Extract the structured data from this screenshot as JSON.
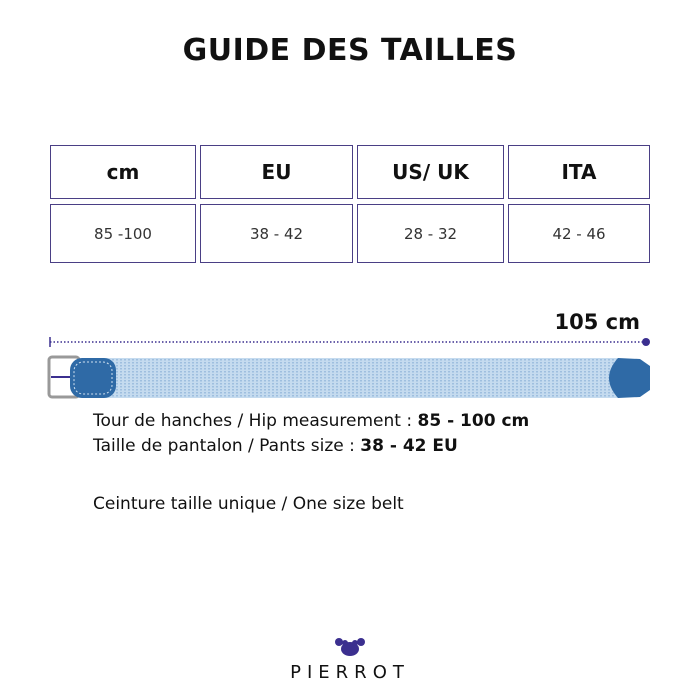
{
  "title": "GUIDE DES TAILLES",
  "table": {
    "headers": [
      "cm",
      "EU",
      "US/ UK",
      "ITA"
    ],
    "row": [
      "85 -100",
      "38 - 42",
      "28 - 32",
      "42 - 46"
    ]
  },
  "belt": {
    "length_label": "105 cm",
    "strap_color": "#b9d3ea",
    "tip_color": "#2f6aa6",
    "accent": "#3b2f8f"
  },
  "info": {
    "hip_label": "Tour de hanches / Hip measurement : ",
    "hip_value": "85 - 100 cm",
    "pants_label": "Taille de pantalon / Pants size : ",
    "pants_value": "38 - 42 EU",
    "one_size": "Ceinture taille unique / One size belt"
  },
  "brand": {
    "name": "PIERROT"
  }
}
